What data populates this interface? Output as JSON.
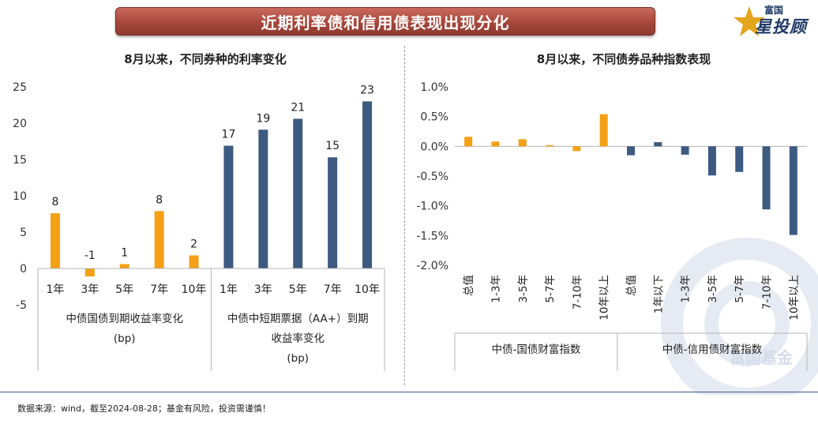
{
  "header": {
    "title": "近期利率债和信用债表现出现分化",
    "logo_top": "富国",
    "logo_main": "星投顾",
    "star_color": "#e5a51c"
  },
  "watermark_text": "富国基金",
  "colors": {
    "orange": "#f5a015",
    "navy": "#3d5a80"
  },
  "chart_data": [
    {
      "type": "bar",
      "title": "8月以来，不同券种的利率变化",
      "ylim": [
        -5,
        25
      ],
      "yticks": [
        "-5",
        "0",
        "5",
        "10",
        "15",
        "20",
        "25"
      ],
      "ytick_values": [
        -5,
        0,
        5,
        10,
        15,
        20,
        25
      ],
      "categories": [
        "1年",
        "3年",
        "5年",
        "7年",
        "10年",
        "1年",
        "3年",
        "5年",
        "7年",
        "10年"
      ],
      "values": [
        7.6,
        -1.1,
        0.6,
        7.9,
        1.8,
        16.9,
        19.1,
        20.6,
        15.3,
        23.0
      ],
      "data_labels": [
        "8",
        "-1",
        "1",
        "8",
        "2",
        "17",
        "19",
        "21",
        "15",
        "23"
      ],
      "bar_groups": [
        0,
        0,
        0,
        0,
        0,
        1,
        1,
        1,
        1,
        1
      ],
      "groups": [
        {
          "lines": [
            "中债国债到期收益率变化",
            "(bp)"
          ]
        },
        {
          "lines": [
            "中债中短期票据（AA+）到期",
            "收益率变化",
            "(bp)"
          ]
        }
      ],
      "grid": false
    },
    {
      "type": "bar",
      "title": "8月以来，不同债券品种指数表现",
      "ylim": [
        -2.0,
        1.0
      ],
      "yticks": [
        "1.0%",
        "0.5%",
        "0.0%",
        "-0.5%",
        "-1.0%",
        "-1.5%",
        "-2.0%"
      ],
      "ytick_values": [
        1.0,
        0.5,
        0.0,
        -0.5,
        -1.0,
        -1.5,
        -2.0
      ],
      "categories": [
        "总值",
        "1-3年",
        "3-5年",
        "5-7年",
        "7-10年",
        "10年以上",
        "总值",
        "1年以下",
        "1-3年",
        "3-5年",
        "5-7年",
        "7-10年",
        "10年以上"
      ],
      "values": [
        0.16,
        0.08,
        0.12,
        0.02,
        -0.08,
        0.54,
        -0.15,
        0.07,
        -0.14,
        -0.49,
        -0.43,
        -1.06,
        -1.49
      ],
      "bar_groups": [
        0,
        0,
        0,
        0,
        0,
        0,
        1,
        1,
        1,
        1,
        1,
        1,
        1
      ],
      "groups": [
        {
          "lines": [
            "中债-国债财富指数"
          ]
        },
        {
          "lines": [
            "中债-信用债财富指数"
          ]
        }
      ],
      "grid": false
    }
  ],
  "footer": "数据来源：wind，截至2024-08-28；基金有风险，投资需谨慎！"
}
